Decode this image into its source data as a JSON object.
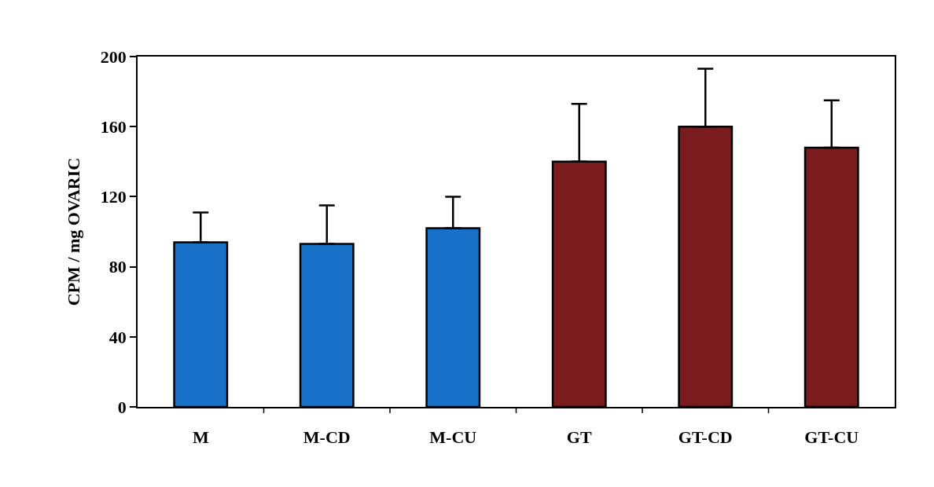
{
  "chart_data": {
    "type": "bar",
    "ylabel": "CPM / mg OVARIC",
    "categories": [
      "M",
      "M-CD",
      "M-CU",
      "GT",
      "GT-CD",
      "GT-CU"
    ],
    "values": [
      94,
      93,
      102,
      140,
      160,
      148
    ],
    "errors": [
      [
        94,
        111
      ],
      [
        93,
        115
      ],
      [
        102,
        120
      ],
      [
        140,
        173
      ],
      [
        160,
        193
      ],
      [
        148,
        175
      ]
    ],
    "colors": [
      "#1a72c8",
      "#1a72c8",
      "#1a72c8",
      "#7a1c1e",
      "#7a1c1e",
      "#7a1c1e"
    ],
    "ylim": [
      0,
      200
    ],
    "yticks": [
      0,
      40,
      80,
      120,
      160,
      200
    ]
  }
}
